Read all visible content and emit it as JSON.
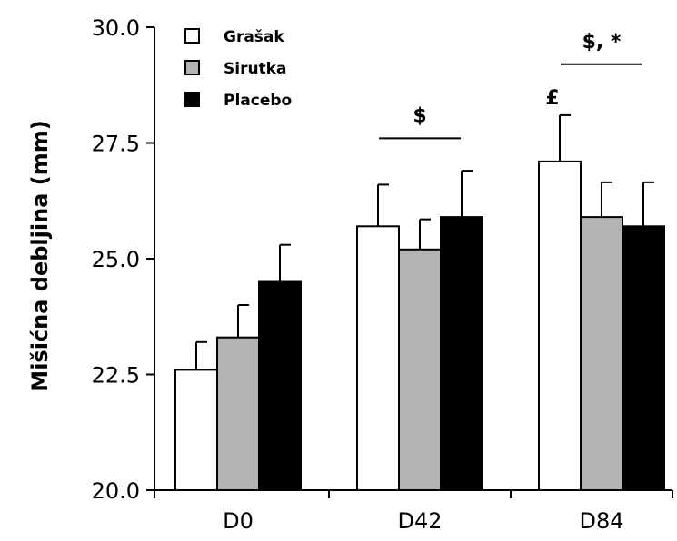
{
  "chart_data": {
    "type": "bar",
    "ylabel": "Mišićna debljina (mm)",
    "ylim": [
      20.0,
      30.0
    ],
    "yticks": [
      "20.0",
      "22.5",
      "25.0",
      "27.5",
      "30.0"
    ],
    "categories": [
      "D0",
      "D42",
      "D84"
    ],
    "legend_position": "top-left",
    "series": [
      {
        "name": "Grašak",
        "color": "#ffffff",
        "values": [
          22.6,
          25.7,
          27.1
        ],
        "errors": [
          0.6,
          0.9,
          1.0
        ]
      },
      {
        "name": "Sirutka",
        "color": "#b3b3b3",
        "values": [
          23.3,
          25.2,
          25.9
        ],
        "errors": [
          0.7,
          0.65,
          0.75
        ]
      },
      {
        "name": "Placebo",
        "color": "#000000",
        "values": [
          24.5,
          25.9,
          25.7
        ],
        "errors": [
          0.8,
          1.0,
          0.95
        ]
      }
    ],
    "annotations": [
      {
        "text": "$",
        "category_index": 1,
        "type": "bracket",
        "y": 27.6
      },
      {
        "text": "$, *",
        "category_index": 2,
        "type": "bracket",
        "y": 29.2
      },
      {
        "text": "£",
        "category_index": 2,
        "series_index": 0,
        "type": "bar_label"
      }
    ]
  }
}
